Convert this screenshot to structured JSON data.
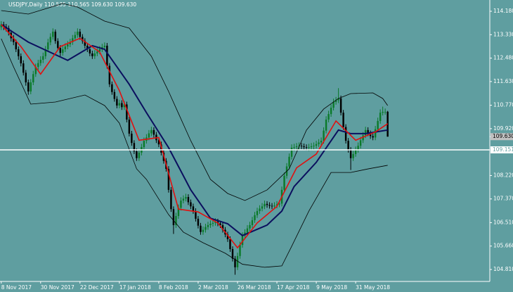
{
  "chart_data": {
    "type": "candlestick",
    "title": "USDJPY,Daily  110.535 110.565 109.630 109.630",
    "background": "#5f9ea0",
    "up_color": "#0b7a2a",
    "down_color": "#000000",
    "grid": false,
    "xlim": [
      -0.5,
      198.5
    ],
    "ylim": [
      104.376,
      114.589
    ],
    "xticks": [
      {
        "value": 0,
        "label": "8 Nov 2017"
      },
      {
        "value": 16,
        "label": "30 Nov 2017"
      },
      {
        "value": 32,
        "label": "22 Dec 2017"
      },
      {
        "value": 48,
        "label": "17 Jan 2018"
      },
      {
        "value": 64,
        "label": "8 Feb 2018"
      },
      {
        "value": 80,
        "label": "2 Mar 2018"
      },
      {
        "value": 96,
        "label": "26 Mar 2018"
      },
      {
        "value": 112,
        "label": "17 Apr 2018"
      },
      {
        "value": 128,
        "label": "9 May 2018"
      },
      {
        "value": 144,
        "label": "31 May 2018"
      }
    ],
    "yticks": [
      {
        "value": 114.18,
        "label": "114.180"
      },
      {
        "value": 113.33,
        "label": "113.330"
      },
      {
        "value": 112.48,
        "label": "112.480"
      },
      {
        "value": 111.63,
        "label": "111.630"
      },
      {
        "value": 110.77,
        "label": "110.770"
      },
      {
        "value": 109.92,
        "label": "109.920"
      },
      {
        "value": 108.22,
        "label": "108.220"
      },
      {
        "value": 107.37,
        "label": "107.370"
      },
      {
        "value": 106.51,
        "label": "106.510"
      },
      {
        "value": 105.66,
        "label": "105.660"
      },
      {
        "value": 104.81,
        "label": "104.810"
      }
    ],
    "bid": {
      "value": 109.63,
      "label": "109.630"
    },
    "price_line": {
      "value": 109.151,
      "label": "109.151",
      "color": "#ffffff"
    },
    "open": [
      113.6,
      113.7,
      113.62,
      113.57,
      113.4,
      113.2,
      113.06,
      112.8,
      112.55,
      112.29,
      111.95,
      111.6,
      111.27,
      111.6,
      111.9,
      112.16,
      112.3,
      112.42,
      112.55,
      112.8,
      113.05,
      113.25,
      113.44,
      113.1,
      112.85,
      112.67,
      112.8,
      112.9,
      112.98,
      113.06,
      113.2,
      113.32,
      113.44,
      113.25,
      113.1,
      112.93,
      112.8,
      112.65,
      112.55,
      112.65,
      112.72,
      112.8,
      112.88,
      112.93,
      112.2,
      111.53,
      111.25,
      111.0,
      110.76,
      110.85,
      110.7,
      110.8,
      110.25,
      109.74,
      109.4,
      109.1,
      108.85,
      109.05,
      109.25,
      109.48,
      109.6,
      109.75,
      109.87,
      109.7,
      109.5,
      109.35,
      109.05,
      108.75,
      108.46,
      107.7,
      107.0,
      106.42,
      106.75,
      107.05,
      107.31,
      107.38,
      107.44,
      107.25,
      107.1,
      106.93,
      106.65,
      106.4,
      106.17,
      106.25,
      106.35,
      106.42,
      106.47,
      106.5,
      106.55,
      106.48,
      106.42,
      106.25,
      106.08,
      105.91,
      105.55,
      105.2,
      104.89,
      105.3,
      105.7,
      106.04,
      106.15,
      106.3,
      106.42,
      106.6,
      106.78,
      106.93,
      107.02,
      107.1,
      107.19,
      107.15,
      107.12,
      107.1,
      107.13,
      107.17,
      107.2,
      107.7,
      108.21,
      108.55,
      108.9,
      109.23,
      109.25,
      109.28,
      109.3,
      109.28,
      109.25,
      109.23,
      109.25,
      109.28,
      109.3,
      109.36,
      109.42,
      109.48,
      109.85,
      110.25,
      110.45,
      110.68,
      110.89,
      110.95,
      111.02,
      110.5,
      109.98,
      109.48,
      109.15,
      108.85,
      109.0,
      109.15,
      109.3,
      109.5,
      109.68,
      109.87,
      109.75,
      109.65,
      109.6,
      109.9,
      110.2,
      110.5,
      110.53,
      110.535
    ],
    "high": [
      113.82,
      113.8,
      113.72,
      113.66,
      113.5,
      113.32,
      113.15,
      112.9,
      112.65,
      112.4,
      112.05,
      111.7,
      111.72,
      112.02,
      112.28,
      112.42,
      112.55,
      112.68,
      112.92,
      113.18,
      113.38,
      113.56,
      113.52,
      113.2,
      112.95,
      112.92,
      113.02,
      113.1,
      113.18,
      113.32,
      113.44,
      113.56,
      113.54,
      113.35,
      113.2,
      113.03,
      112.9,
      112.75,
      112.77,
      112.84,
      112.92,
      113.0,
      113.05,
      113.03,
      112.3,
      111.63,
      111.35,
      111.1,
      110.97,
      110.95,
      110.92,
      110.9,
      110.35,
      109.84,
      109.5,
      109.2,
      109.17,
      109.37,
      109.6,
      109.72,
      109.87,
      109.99,
      109.97,
      109.8,
      109.6,
      109.45,
      109.15,
      108.85,
      108.56,
      107.8,
      107.1,
      106.87,
      107.17,
      107.43,
      107.5,
      107.56,
      107.54,
      107.35,
      107.2,
      107.03,
      106.75,
      106.5,
      106.37,
      106.47,
      106.54,
      106.59,
      106.62,
      106.67,
      106.65,
      106.58,
      106.52,
      106.35,
      106.18,
      106.01,
      105.65,
      105.3,
      105.42,
      105.82,
      106.16,
      106.27,
      106.42,
      106.54,
      106.72,
      106.9,
      107.05,
      107.14,
      107.22,
      107.31,
      107.29,
      107.25,
      107.22,
      107.25,
      107.29,
      107.32,
      107.82,
      108.33,
      108.67,
      109.02,
      109.35,
      109.37,
      109.4,
      109.42,
      109.4,
      109.38,
      109.35,
      109.37,
      109.4,
      109.42,
      109.48,
      109.54,
      109.6,
      109.97,
      110.37,
      110.57,
      110.8,
      111.01,
      111.07,
      111.39,
      111.12,
      110.6,
      110.08,
      109.58,
      109.25,
      109.12,
      109.27,
      109.42,
      109.62,
      109.8,
      109.99,
      109.97,
      109.85,
      109.75,
      110.02,
      110.32,
      110.62,
      110.72,
      110.65,
      110.565
    ],
    "low": [
      113.5,
      113.5,
      113.45,
      113.3,
      113.08,
      112.95,
      112.7,
      112.42,
      112.18,
      111.85,
      111.48,
      111.15,
      111.17,
      111.5,
      111.8,
      112.05,
      112.2,
      112.3,
      112.45,
      112.7,
      112.95,
      113.15,
      113.0,
      112.75,
      112.55,
      112.57,
      112.7,
      112.8,
      112.88,
      112.96,
      113.1,
      113.22,
      113.15,
      113.0,
      112.83,
      112.7,
      112.55,
      112.45,
      112.45,
      112.55,
      112.62,
      112.7,
      112.78,
      112.1,
      111.43,
      111.15,
      110.9,
      110.66,
      110.66,
      110.6,
      110.6,
      110.15,
      109.64,
      109.3,
      109.0,
      108.75,
      108.75,
      108.95,
      109.15,
      109.38,
      109.5,
      109.65,
      109.6,
      109.4,
      109.25,
      108.95,
      108.65,
      108.36,
      107.6,
      106.9,
      106.1,
      106.32,
      106.65,
      106.95,
      107.21,
      107.28,
      107.15,
      107.0,
      106.83,
      106.55,
      106.3,
      106.07,
      106.07,
      106.15,
      106.25,
      106.32,
      106.37,
      106.4,
      106.38,
      106.32,
      106.15,
      105.98,
      105.81,
      105.45,
      105.1,
      104.62,
      104.79,
      105.2,
      105.6,
      105.94,
      106.05,
      106.2,
      106.32,
      106.5,
      106.68,
      106.83,
      106.92,
      107.0,
      107.05,
      107.02,
      107.0,
      107.0,
      107.03,
      107.07,
      107.1,
      107.6,
      108.11,
      108.45,
      108.8,
      109.11,
      109.13,
      109.16,
      109.18,
      109.15,
      109.13,
      109.11,
      109.13,
      109.16,
      109.2,
      109.26,
      109.32,
      109.38,
      109.75,
      110.15,
      110.35,
      110.58,
      110.79,
      110.85,
      110.4,
      109.88,
      109.38,
      109.05,
      108.42,
      108.75,
      108.9,
      109.05,
      109.2,
      109.4,
      109.58,
      109.65,
      109.55,
      109.5,
      109.5,
      109.8,
      110.1,
      110.4,
      110.43,
      109.63
    ],
    "close": [
      113.7,
      113.62,
      113.57,
      113.4,
      113.2,
      113.06,
      112.8,
      112.55,
      112.29,
      111.95,
      111.6,
      111.27,
      111.6,
      111.9,
      112.16,
      112.3,
      112.42,
      112.55,
      112.8,
      113.05,
      113.25,
      113.44,
      113.1,
      112.85,
      112.67,
      112.8,
      112.9,
      112.98,
      113.06,
      113.2,
      113.32,
      113.44,
      113.25,
      113.1,
      112.93,
      112.8,
      112.65,
      112.55,
      112.65,
      112.72,
      112.8,
      112.88,
      112.93,
      112.2,
      111.53,
      111.25,
      111.0,
      110.76,
      110.85,
      110.7,
      110.8,
      110.25,
      109.74,
      109.4,
      109.1,
      108.85,
      109.05,
      109.25,
      109.48,
      109.6,
      109.75,
      109.87,
      109.7,
      109.5,
      109.35,
      109.05,
      108.75,
      108.46,
      107.7,
      107.0,
      106.42,
      106.75,
      107.05,
      107.31,
      107.38,
      107.44,
      107.25,
      107.1,
      106.93,
      106.65,
      106.4,
      106.17,
      106.25,
      106.35,
      106.42,
      106.47,
      106.5,
      106.55,
      106.48,
      106.42,
      106.25,
      106.08,
      105.91,
      105.55,
      105.2,
      104.89,
      105.3,
      105.7,
      106.04,
      106.15,
      106.3,
      106.42,
      106.6,
      106.78,
      106.93,
      107.02,
      107.1,
      107.19,
      107.15,
      107.12,
      107.1,
      107.13,
      107.17,
      107.2,
      107.7,
      108.21,
      108.55,
      108.9,
      109.23,
      109.25,
      109.28,
      109.3,
      109.28,
      109.25,
      109.23,
      109.25,
      109.28,
      109.3,
      109.36,
      109.42,
      109.48,
      109.85,
      110.25,
      110.45,
      110.68,
      110.89,
      110.95,
      111.02,
      110.5,
      109.98,
      109.48,
      109.15,
      108.85,
      109.0,
      109.15,
      109.3,
      109.5,
      109.68,
      109.87,
      109.75,
      109.65,
      109.6,
      109.9,
      110.2,
      110.5,
      110.53,
      110.53,
      109.63
    ],
    "overlays": [
      {
        "color": "#000000",
        "width": 0.8,
        "x": [
          0,
          11,
          25,
          31,
          42,
          52,
          61,
          68,
          77,
          85,
          92,
          99,
          108,
          117,
          124,
          131,
          137,
          142,
          151,
          155,
          157
        ],
        "values": [
          114.206,
          114.078,
          114.461,
          114.334,
          113.823,
          113.568,
          112.547,
          111.27,
          109.483,
          108.079,
          107.568,
          107.313,
          107.696,
          108.462,
          109.866,
          110.632,
          111.015,
          111.193,
          111.219,
          111.015,
          110.76
        ]
      },
      {
        "color": "#000000",
        "width": 0.8,
        "x": [
          0,
          5,
          12,
          22,
          34,
          42,
          48,
          55,
          59,
          68,
          74,
          82,
          91,
          98,
          107,
          114,
          118,
          125,
          134,
          142,
          149,
          157
        ],
        "values": [
          113.185,
          112.164,
          110.81,
          110.887,
          111.142,
          110.76,
          110.121,
          108.462,
          108.079,
          106.8,
          106.165,
          105.78,
          105.4,
          105.0,
          104.889,
          104.94,
          105.65,
          106.93,
          108.33,
          108.33,
          108.46,
          108.59
        ]
      },
      {
        "color": "#0b0f5e",
        "width": 2,
        "x": [
          0,
          11,
          27,
          37,
          42,
          52,
          59,
          68,
          77,
          85,
          92,
          98,
          108,
          114,
          119,
          128,
          137,
          142,
          148,
          157
        ],
        "values": [
          113.7,
          113.06,
          112.4,
          112.93,
          112.8,
          111.53,
          110.5,
          109.23,
          107.7,
          106.67,
          106.47,
          106.04,
          106.42,
          106.93,
          107.82,
          108.7,
          109.87,
          109.74,
          109.74,
          109.87
        ]
      },
      {
        "color": "#e01010",
        "width": 1.6,
        "x": [
          0,
          8,
          16,
          24,
          32,
          40,
          48,
          56,
          64,
          72,
          80,
          88,
          96,
          104,
          112,
          120,
          128,
          136,
          144,
          152,
          157
        ],
        "values": [
          113.7,
          112.9,
          111.9,
          112.9,
          113.2,
          112.7,
          111.3,
          109.5,
          109.6,
          107.0,
          106.9,
          106.5,
          105.6,
          106.5,
          107.1,
          108.5,
          109.0,
          110.2,
          109.5,
          109.8,
          110.1
        ]
      }
    ]
  }
}
